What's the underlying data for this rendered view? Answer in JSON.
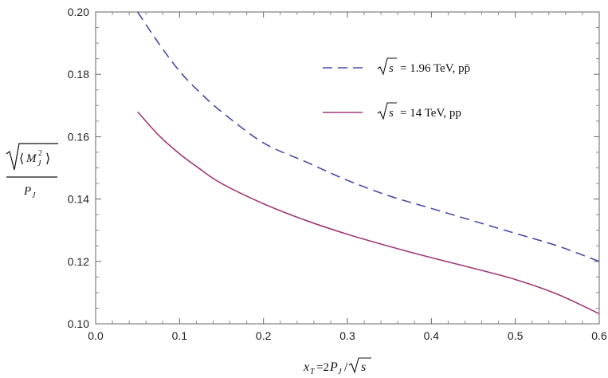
{
  "chart_data": {
    "type": "line",
    "title": "",
    "xlabel": "x_T=2P_J/√s",
    "ylabel": "√⟨M_J²⟩ / P_J",
    "xlim": [
      0.0,
      0.6
    ],
    "ylim": [
      0.1,
      0.2
    ],
    "x_ticks": [
      "0.0",
      "0.1",
      "0.2",
      "0.3",
      "0.4",
      "0.5",
      "0.6"
    ],
    "y_ticks": [
      "0.10",
      "0.12",
      "0.14",
      "0.16",
      "0.18",
      "0.20"
    ],
    "grid": false,
    "legend_position": "top-right",
    "series": [
      {
        "name": "√s = 1.96 TeV, pp̄",
        "legend_sqrt": "s",
        "legend_rest": "= 1.96 TeV, pp̄",
        "color": "#4a4aa8",
        "dash": true,
        "x": [
          0.05,
          0.075,
          0.1,
          0.125,
          0.15,
          0.2,
          0.25,
          0.3,
          0.35,
          0.4,
          0.45,
          0.5,
          0.55,
          0.6
        ],
        "y": [
          0.2,
          0.19,
          0.181,
          0.174,
          0.168,
          0.158,
          0.152,
          0.146,
          0.141,
          0.137,
          0.133,
          0.129,
          0.125,
          0.12
        ]
      },
      {
        "name": "√s = 14 TeV, pp",
        "legend_sqrt": "s",
        "legend_rest": "= 14 TeV, pp",
        "color": "#a03878",
        "dash": false,
        "x": [
          0.05,
          0.075,
          0.1,
          0.125,
          0.15,
          0.2,
          0.25,
          0.3,
          0.35,
          0.4,
          0.45,
          0.5,
          0.55,
          0.6
        ],
        "y": [
          0.168,
          0.1605,
          0.1545,
          0.1495,
          0.145,
          0.1385,
          0.1332,
          0.1287,
          0.1248,
          0.1212,
          0.1178,
          0.1142,
          0.1095,
          0.1032
        ]
      }
    ]
  }
}
